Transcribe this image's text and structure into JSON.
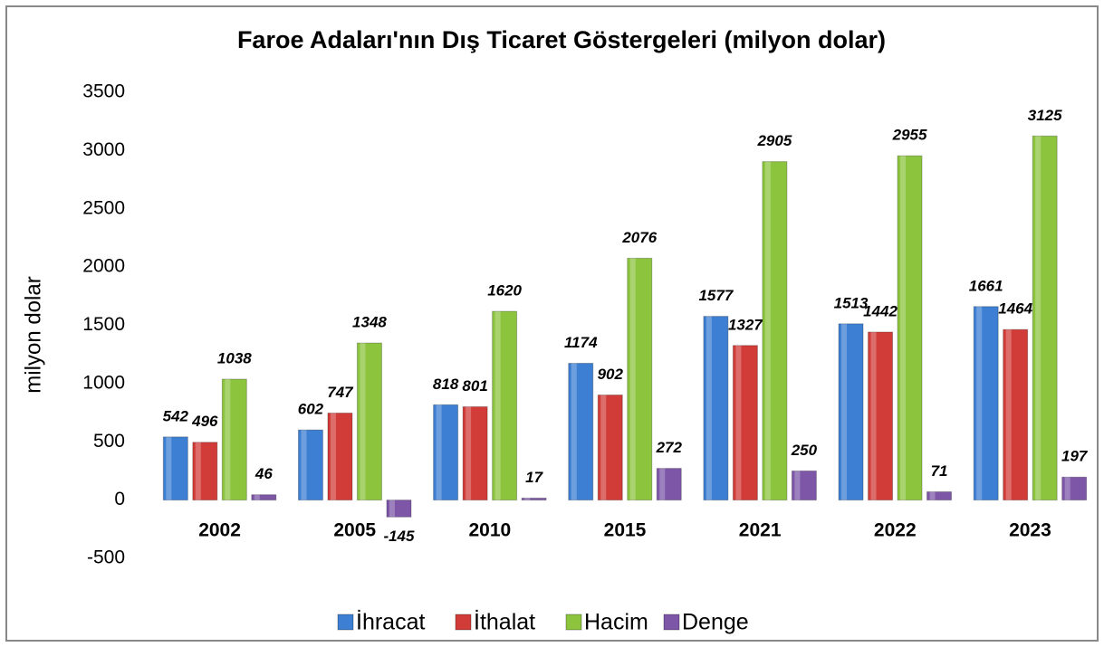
{
  "chart_data": {
    "type": "bar",
    "title": "Faroe Adaları'nın Dış Ticaret Göstergeleri  (milyon dolar)",
    "y_label": "milyon dolar",
    "categories": [
      "2002",
      "2005",
      "2010",
      "2015",
      "2021",
      "2022",
      "2023"
    ],
    "series": [
      {
        "name": "İhracat",
        "color": "#3d7fd3",
        "values": [
          542,
          602,
          818,
          1174,
          1577,
          1513,
          1661
        ]
      },
      {
        "name": "İthalat",
        "color": "#d23c38",
        "values": [
          496,
          747,
          801,
          902,
          1327,
          1442,
          1464
        ]
      },
      {
        "name": "Hacim",
        "color": "#8cc43e",
        "values": [
          1038,
          1348,
          1620,
          2076,
          2905,
          2955,
          3125
        ]
      },
      {
        "name": "Denge",
        "color": "#7d56a8",
        "values": [
          46,
          -145,
          17,
          272,
          250,
          71,
          197
        ]
      }
    ],
    "ylim": [
      -500,
      3500
    ],
    "yticks": [
      -500,
      0,
      500,
      1000,
      1500,
      2000,
      2500,
      3000,
      3500
    ],
    "grid": false,
    "legend": "bottom"
  }
}
